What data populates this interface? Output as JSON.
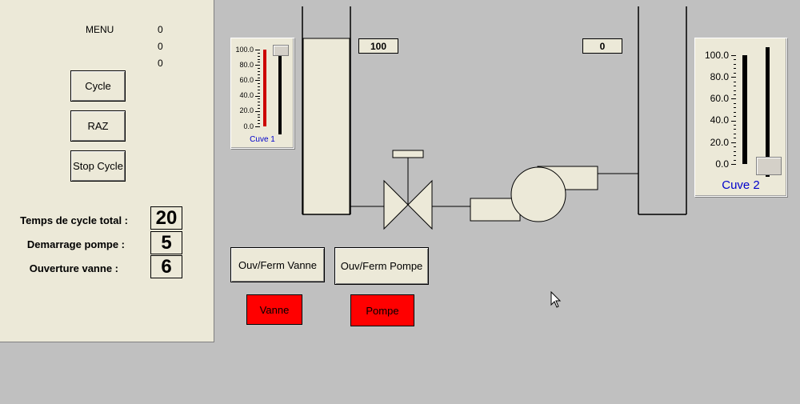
{
  "menu": {
    "title": "MENU",
    "counters": [
      "0",
      "0",
      "0"
    ],
    "buttons": {
      "cycle": "Cycle",
      "raz": "RAZ",
      "stop_cycle": "Stop Cycle"
    },
    "params": [
      {
        "label": "Temps de cycle total :",
        "value": "20"
      },
      {
        "label": "Demarrage pompe :",
        "value": "5"
      },
      {
        "label": "Ouverture vanne :",
        "value": "6"
      }
    ]
  },
  "cuve1": {
    "label": "Cuve 1",
    "ticks": [
      "100.0",
      "80.0",
      "60.0",
      "40.0",
      "20.0",
      "0.0"
    ],
    "level_fraction": 1.0,
    "value_display": "100",
    "bar_color": "#cc0000"
  },
  "cuve2": {
    "label": "Cuve 2",
    "ticks": [
      "100.0",
      "80.0",
      "60.0",
      "40.0",
      "20.0",
      "0.0"
    ],
    "level_fraction": 0.0,
    "value_display": "0",
    "bar_color": "#000000"
  },
  "controls": {
    "vanne_button": "Ouv/Ferm Vanne",
    "pompe_button": "Ouv/Ferm Pompe",
    "vanne_indicator": "Vanne",
    "pompe_indicator": "Pompe",
    "indicator_color": "#ff0000"
  }
}
